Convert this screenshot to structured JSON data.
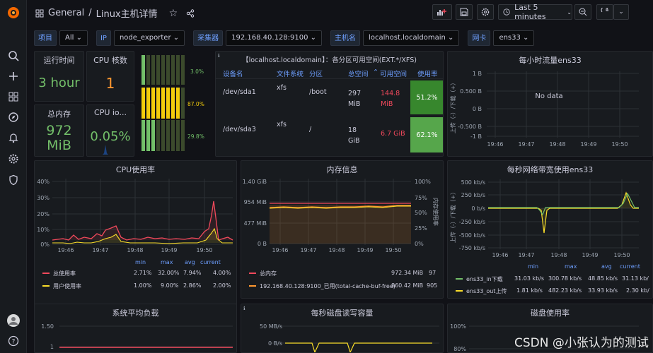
{
  "breadcrumb": {
    "folder": "General",
    "sep": "/",
    "title": "Linux主机详情"
  },
  "time_range": "Last 5 minutes",
  "vars": [
    {
      "label": "项目",
      "value": "All"
    },
    {
      "label": "IP",
      "value": "node_exporter"
    },
    {
      "label": "采集器",
      "value": "192.168.40.128:9100"
    },
    {
      "label": "主机名",
      "value": "localhost.localdomain"
    },
    {
      "label": "网卡",
      "value": "ens33"
    }
  ],
  "stats": {
    "uptime": {
      "title": "运行时间",
      "value": "3 hour"
    },
    "cpu_cores": {
      "title": "CPU 核数",
      "value": "1"
    },
    "total_mem": {
      "title": "总内存",
      "value": "972 MiB"
    },
    "cpu_io": {
      "title": "CPU io...",
      "value": "0.05%"
    }
  },
  "gauges": [
    {
      "label": "3.0%",
      "value": 3.0,
      "color": "#73bf69"
    },
    {
      "label": "87.0%",
      "value": 87.0,
      "color": "#f2cc0c"
    },
    {
      "label": "29.8%",
      "value": 29.8,
      "color": "#73bf69"
    }
  ],
  "disk_table": {
    "title": "【localhost.localdomain】：各分区可用空间(EXT.*/XFS)",
    "headers": [
      "设备名",
      "文件系统",
      "分区",
      "总空间",
      "可用空间",
      "使用率"
    ],
    "rows": [
      {
        "dev": "/dev/sda1",
        "fs": "xfs",
        "mount": "/boot",
        "total": "297 MiB",
        "avail": "144.8 MiB",
        "usage": "51.2%"
      },
      {
        "dev": "/dev/sda3",
        "fs": "xfs",
        "mount": "/",
        "total": "18 GiB",
        "avail": "6.7 GiB",
        "usage": "62.1%"
      }
    ]
  },
  "traffic": {
    "title": "每小时流量ens33",
    "nodata": "No data",
    "yticks": [
      "1 B",
      "0.500 B",
      "0 B",
      "-0.500 B",
      "-1 B"
    ],
    "ylabel": "上传（-）/下载（+）",
    "xticks": [
      "19:46",
      "19:47",
      "19:48",
      "19:49",
      "19:50"
    ]
  },
  "cpu_chart": {
    "title": "CPU使用率",
    "yticks": [
      "40%",
      "30%",
      "20%",
      "10%",
      "0%"
    ],
    "xticks": [
      "19:46",
      "19:47",
      "19:48",
      "19:49",
      "19:50"
    ],
    "legend_cols": [
      "min",
      "max",
      "avg",
      "current"
    ],
    "legend": [
      {
        "name": "总使用率",
        "color": "#f2495c",
        "min": "2.71%",
        "max": "32.00%",
        "avg": "7.94%",
        "current": "4.00%"
      },
      {
        "name": "用户使用率",
        "color": "#fade2a",
        "min": "1.00%",
        "max": "9.00%",
        "avg": "2.86%",
        "current": "2.00%"
      }
    ]
  },
  "mem_chart": {
    "title": "内存信息",
    "yticks": [
      "1.40 GiB",
      "954 MiB",
      "477 MiB",
      "0 B"
    ],
    "yticks_r": [
      "100%",
      "75%",
      "50%",
      "25%",
      "0%"
    ],
    "ylabel_r": "内存使用率",
    "xticks": [
      "19:46",
      "19:47",
      "19:48",
      "19:49",
      "19:50"
    ],
    "legend": [
      {
        "name": "总内存",
        "color": "#f2495c",
        "value": "972.34 MiB",
        "extra": "97"
      },
      {
        "name": "192.168.40.128:9100_已用(total-cache-buf-free)",
        "color": "#ff9830",
        "value": "860.42 MiB",
        "extra": "905"
      }
    ]
  },
  "net_chart": {
    "title": "每秒网络带宽使用ens33",
    "yticks": [
      "500 kb/s",
      "250 kb/s",
      "0 b/s",
      "-250 kb/s",
      "-500 kb/s",
      "-750 kb/s"
    ],
    "ylabel": "上传（-）/下载（+）",
    "xticks": [
      "19:46",
      "19:47",
      "19:48",
      "19:49",
      "19:50"
    ],
    "legend_cols": [
      "min",
      "max",
      "avg",
      "current"
    ],
    "legend": [
      {
        "name": "ens33_in下载",
        "color": "#73bf69",
        "min": "31.03 kb/s",
        "max": "300.78 kb/s",
        "avg": "48.85 kb/s",
        "current": "31.13 kb/"
      },
      {
        "name": "ens33_out上传",
        "color": "#fade2a",
        "min": "1.81 kb/s",
        "max": "482.23 kb/s",
        "avg": "33.93 kb/s",
        "current": "2.30 kb/"
      }
    ]
  },
  "load_chart": {
    "title": "系统平均负载",
    "yticks": [
      "1.50",
      "1"
    ]
  },
  "diskio_chart": {
    "title": "每秒磁盘读写容量",
    "yticks": [
      "50 MB/s",
      "0 B/s"
    ]
  },
  "diskuse_chart": {
    "title": "磁盘使用率",
    "yticks": [
      "100%",
      "80%"
    ]
  },
  "watermark": "CSDN @小张认为的测试"
}
